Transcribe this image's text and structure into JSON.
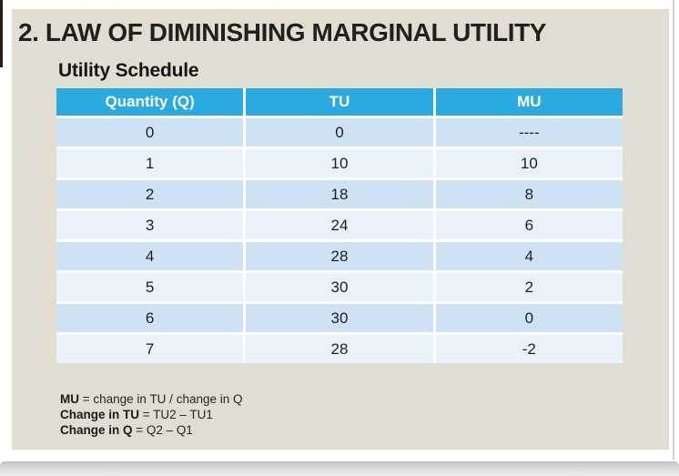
{
  "slide": {
    "title": "2. LAW OF DIMINISHING MARGINAL UTILITY",
    "subtitle": "Utility Schedule",
    "table": {
      "headers": [
        "Quantity (Q)",
        "TU",
        "MU"
      ],
      "rows": [
        {
          "q": "0",
          "tu": "0",
          "mu": "----"
        },
        {
          "q": "1",
          "tu": "10",
          "mu": "10"
        },
        {
          "q": "2",
          "tu": "18",
          "mu": "8"
        },
        {
          "q": "3",
          "tu": "24",
          "mu": "6"
        },
        {
          "q": "4",
          "tu": "28",
          "mu": "4"
        },
        {
          "q": "5",
          "tu": "30",
          "mu": "2"
        },
        {
          "q": "6",
          "tu": "30",
          "mu": "0"
        },
        {
          "q": "7",
          "tu": "28",
          "mu": "-2"
        }
      ]
    },
    "notes": [
      {
        "bold": "MU",
        "rest": " = change in TU / change in Q"
      },
      {
        "bold": "Change in TU",
        "rest": " = TU2 – TU1"
      },
      {
        "bold": "Change in Q",
        "rest": " = Q2 – Q1"
      }
    ],
    "colors": {
      "slide_bg": "#E2DDD1",
      "table_header_bg": "#29ABE2",
      "row_dark": "#CFE2F3",
      "row_light": "#E9F1F9",
      "title_text": "#202020"
    }
  }
}
